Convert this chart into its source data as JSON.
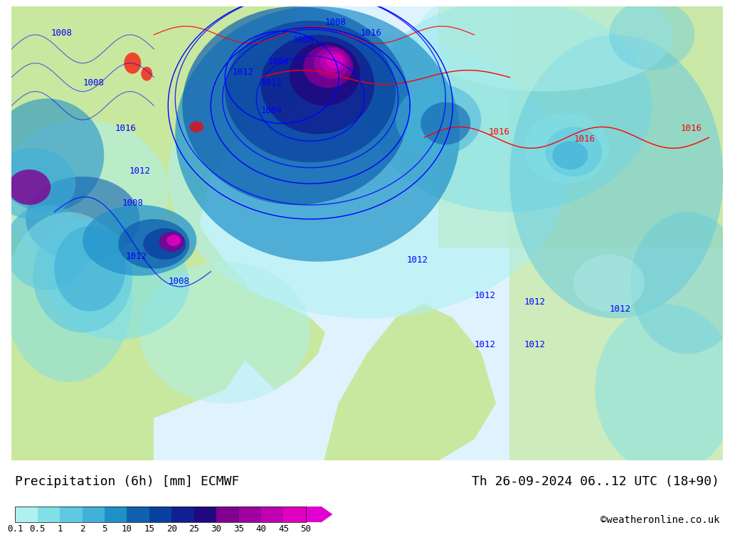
{
  "title_left": "Precipitation (6h) [mm] ECMWF",
  "title_right": "Th 26-09-2024 06..12 UTC (18+90)",
  "credit": "©weatheronline.co.uk",
  "colorbar_values": [
    0.1,
    0.5,
    1,
    2,
    5,
    10,
    15,
    20,
    25,
    30,
    35,
    40,
    45,
    50
  ],
  "colorbar_colors": [
    "#b0f0f0",
    "#80e0e8",
    "#60c8e0",
    "#40b0d8",
    "#2090c8",
    "#1060b0",
    "#0840a0",
    "#102090",
    "#200880",
    "#800090",
    "#a000a0",
    "#c000b0",
    "#e000c0",
    "#e000d0"
  ],
  "bg_color": "#ffffff",
  "map_bg": "#c8e8a0",
  "ocean_color": "#e8f8ff",
  "title_fontsize": 13,
  "credit_fontsize": 10,
  "label_fontsize": 11
}
